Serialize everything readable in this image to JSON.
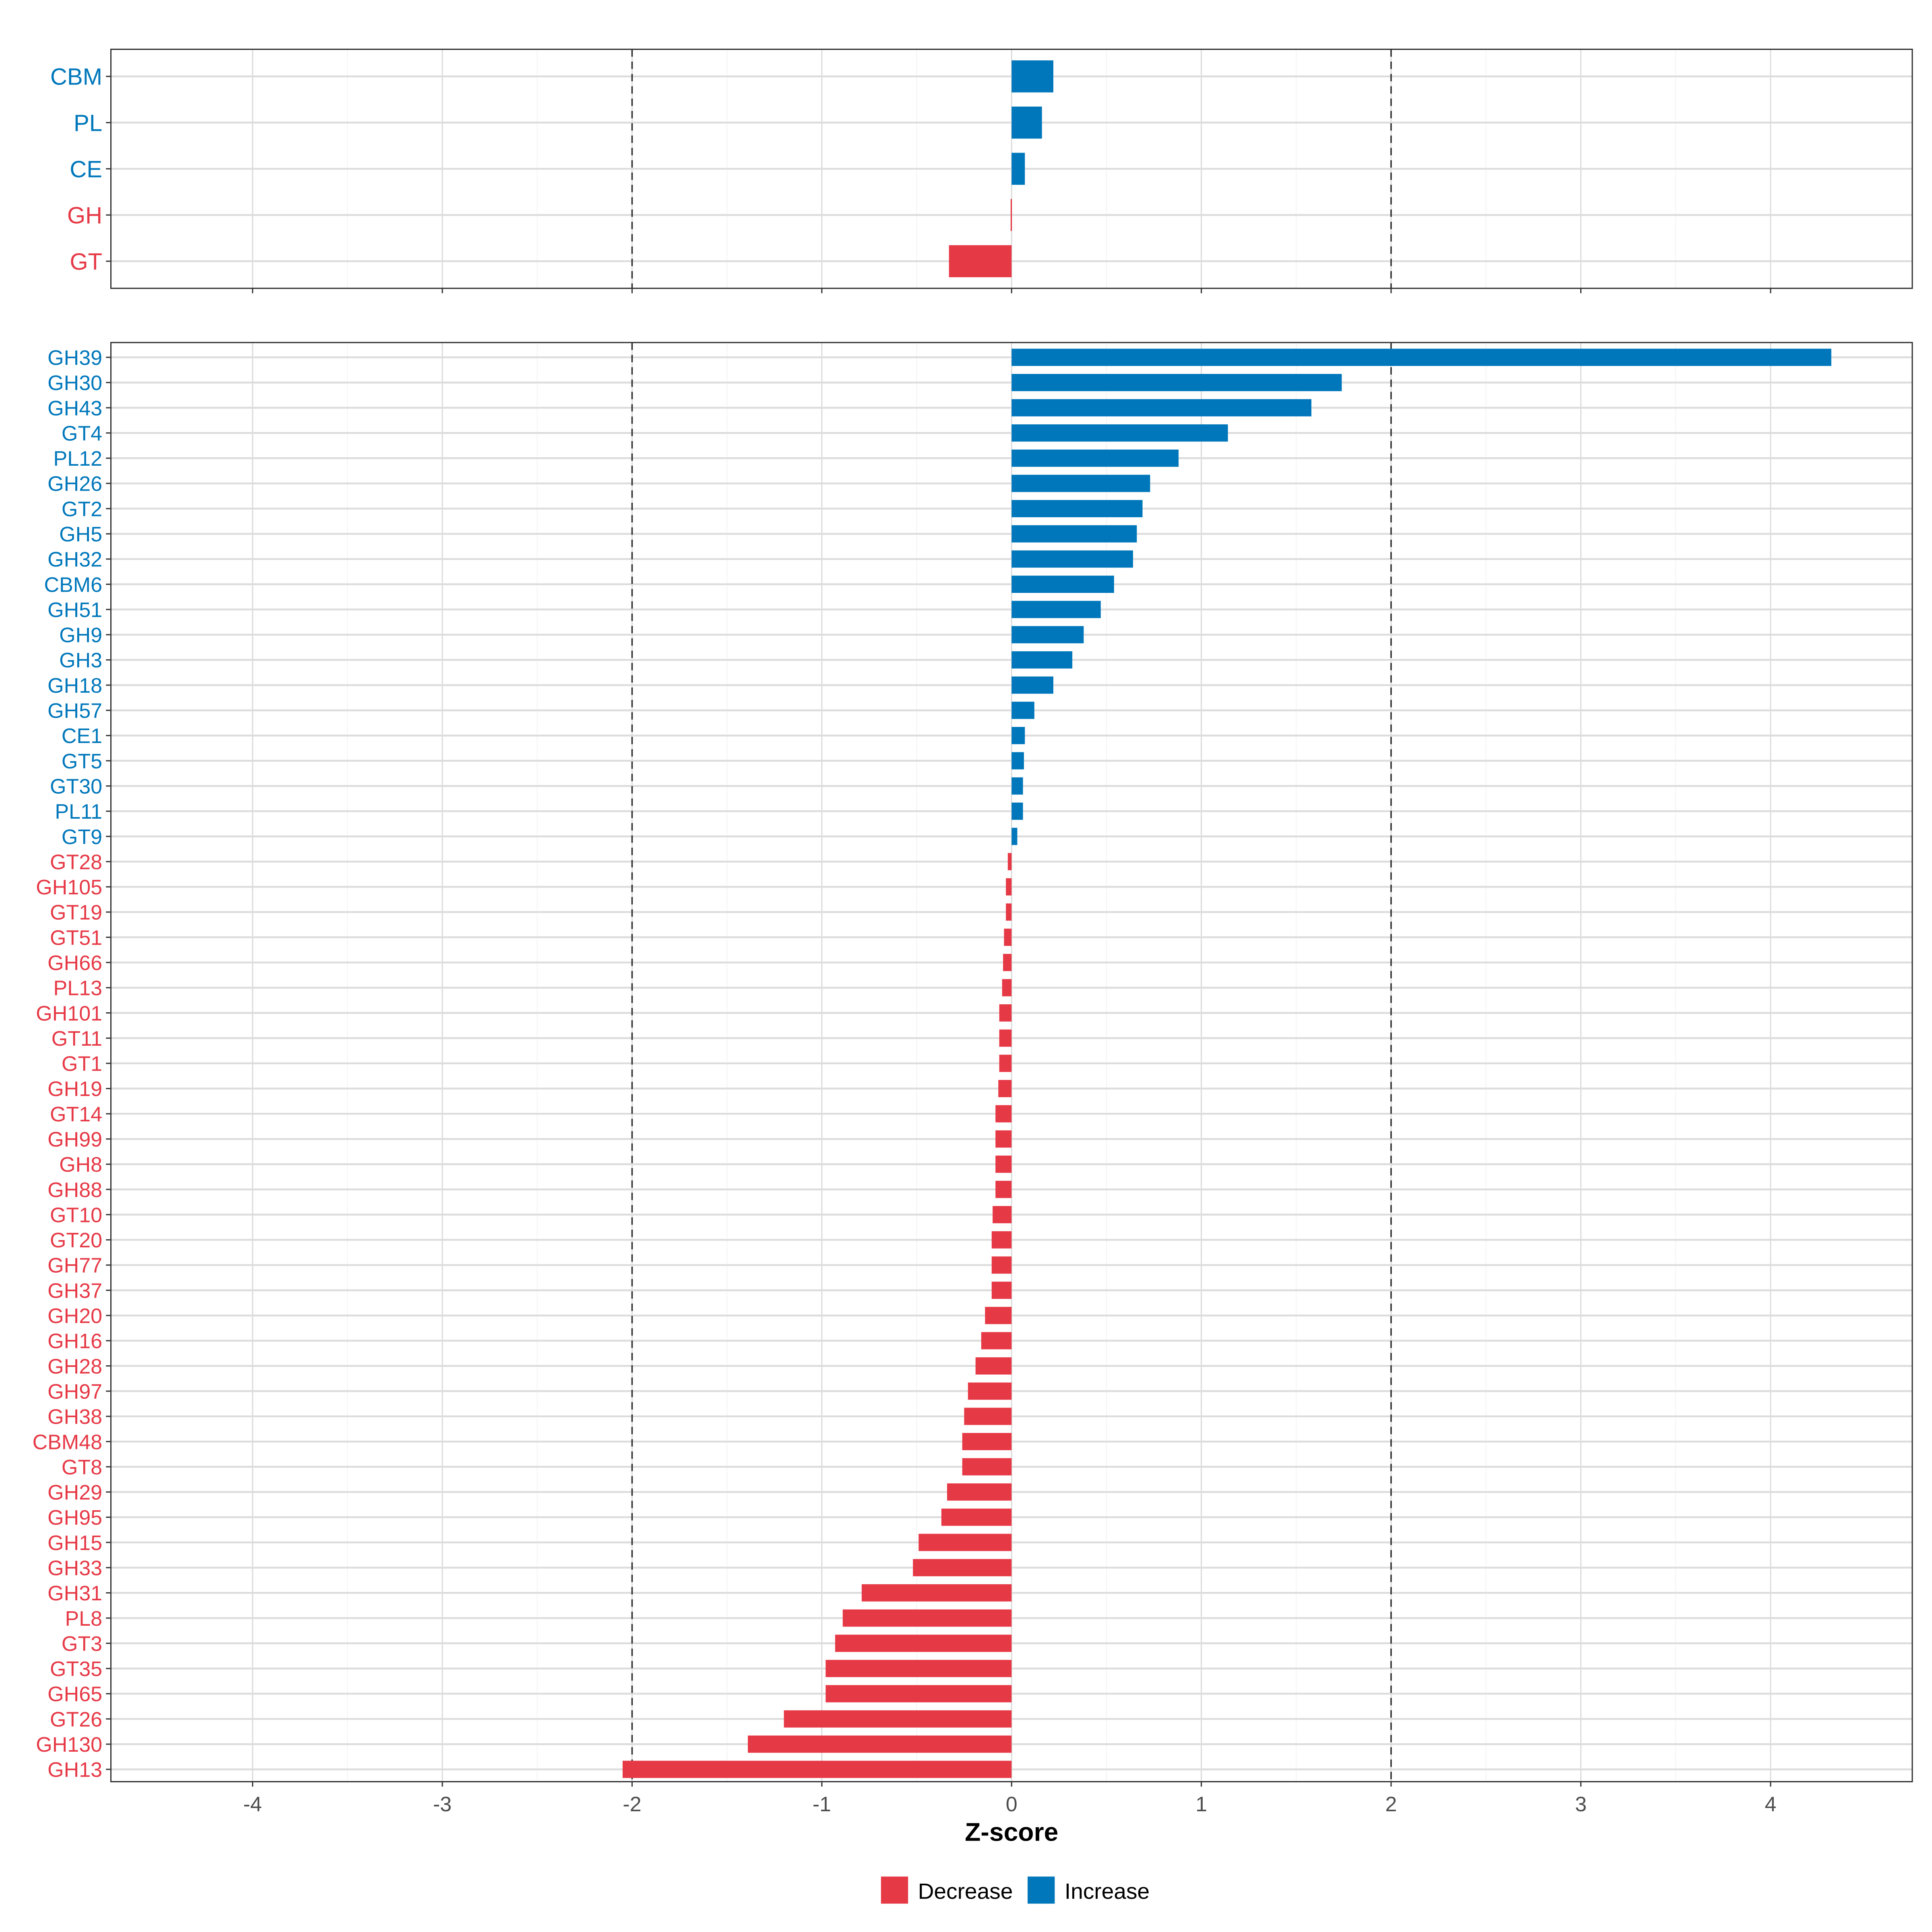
{
  "chart_data": [
    {
      "type": "bar",
      "orientation": "horizontal",
      "panel": "top",
      "categories": [
        "CBM",
        "PL",
        "CE",
        "GH",
        "GT"
      ],
      "values": [
        0.22,
        0.16,
        0.07,
        -0.005,
        -0.33
      ],
      "xlim": [
        -4.74,
        4.75
      ],
      "reference_lines": [
        -2,
        2
      ],
      "grid": true
    },
    {
      "type": "bar",
      "orientation": "horizontal",
      "panel": "bottom",
      "categories": [
        "GH39",
        "GH30",
        "GH43",
        "GT4",
        "PL12",
        "GH26",
        "GT2",
        "GH5",
        "GH32",
        "CBM6",
        "GH51",
        "GH9",
        "GH3",
        "GH18",
        "GH57",
        "CE1",
        "GT5",
        "GT30",
        "PL11",
        "GT9",
        "GT28",
        "GH105",
        "GT19",
        "GT51",
        "GH66",
        "PL13",
        "GH101",
        "GT11",
        "GT1",
        "GH19",
        "GT14",
        "GH99",
        "GH8",
        "GH88",
        "GT10",
        "GT20",
        "GH77",
        "GH37",
        "GH20",
        "GH16",
        "GH28",
        "GH97",
        "GH38",
        "CBM48",
        "GT8",
        "GH29",
        "GH95",
        "GH15",
        "GH33",
        "GH31",
        "PL8",
        "GT3",
        "GT35",
        "GH65",
        "GT26",
        "GH130",
        "GH13"
      ],
      "values": [
        4.32,
        1.74,
        1.58,
        1.14,
        0.88,
        0.73,
        0.69,
        0.66,
        0.64,
        0.54,
        0.47,
        0.38,
        0.32,
        0.22,
        0.12,
        0.07,
        0.065,
        0.06,
        0.06,
        0.03,
        -0.02,
        -0.03,
        -0.03,
        -0.04,
        -0.045,
        -0.05,
        -0.065,
        -0.065,
        -0.065,
        -0.07,
        -0.085,
        -0.085,
        -0.085,
        -0.085,
        -0.1,
        -0.105,
        -0.105,
        -0.105,
        -0.14,
        -0.16,
        -0.19,
        -0.23,
        -0.25,
        -0.26,
        -0.26,
        -0.34,
        -0.37,
        -0.49,
        -0.52,
        -0.79,
        -0.89,
        -0.93,
        -0.98,
        -0.98,
        -1.2,
        -1.39,
        -2.05
      ],
      "xlim": [
        -4.74,
        4.75
      ],
      "reference_lines": [
        -2,
        2
      ],
      "grid": true,
      "xlabel": "Z-score",
      "xticks": [
        "-4",
        "-3",
        "-2",
        "-1",
        "0",
        "1",
        "2",
        "3",
        "4"
      ]
    }
  ],
  "legend": {
    "placement": "bottom",
    "items": [
      {
        "label": "Decrease",
        "color": "#E63946"
      },
      {
        "label": "Increase",
        "color": "#0077BB"
      }
    ]
  }
}
